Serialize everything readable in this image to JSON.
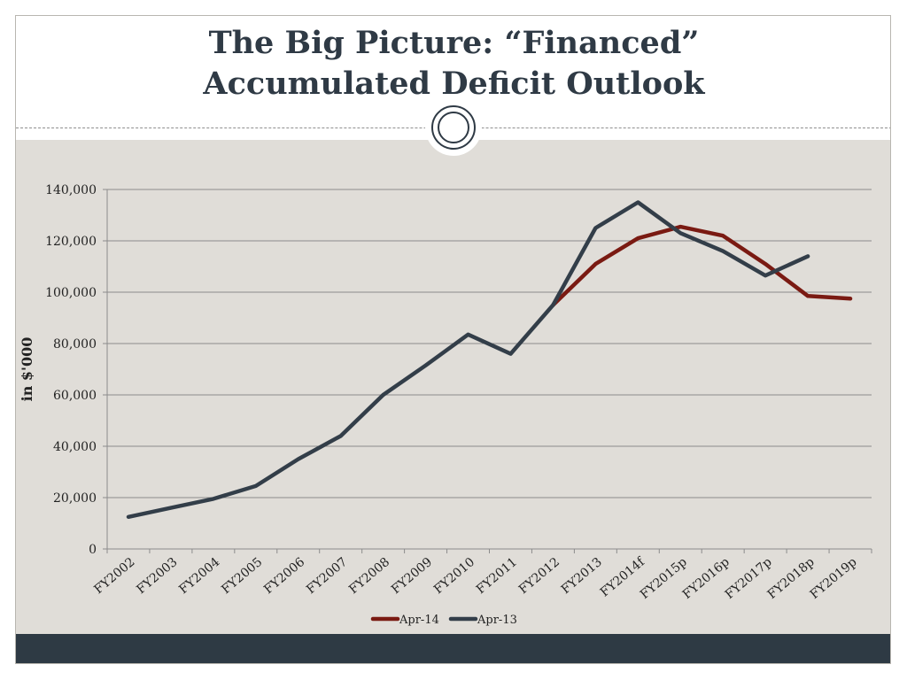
{
  "slide": {
    "title_line1": "The Big Picture:  “Financed”",
    "title_line2": "Accumulated Deficit Outlook"
  },
  "colors": {
    "title": "#2f3a45",
    "panel": "#e0ddd8",
    "footer": "#2e3a44",
    "grid": "#8c8c8c"
  },
  "chart_data": {
    "type": "line",
    "title": "",
    "xlabel": "",
    "ylabel": "in $'000",
    "ylim": [
      0,
      140000
    ],
    "yticks": [
      0,
      20000,
      40000,
      60000,
      80000,
      100000,
      120000,
      140000
    ],
    "ytick_labels": [
      "0",
      "20,000",
      "40,000",
      "60,000",
      "80,000",
      "100,000",
      "120,000",
      "140,000"
    ],
    "grid": true,
    "legend_position": "bottom",
    "categories": [
      "FY2002",
      "FY2003",
      "FY2004",
      "FY2005",
      "FY2006",
      "FY2007",
      "FY2008",
      "FY2009",
      "FY2010",
      "FY2011",
      "FY2012",
      "FY2013",
      "FY2014f",
      "FY2015p",
      "FY2016p",
      "FY2017p",
      "FY2018p",
      "FY2019p"
    ],
    "series": [
      {
        "name": "Apr-14",
        "color": "#7a1a12",
        "values": [
          null,
          null,
          null,
          null,
          null,
          null,
          null,
          null,
          null,
          null,
          95000,
          111000,
          121000,
          125500,
          122000,
          111000,
          98500,
          97500
        ]
      },
      {
        "name": "Apr-13",
        "color": "#333e49",
        "values": [
          12500,
          16000,
          19500,
          24500,
          35000,
          44000,
          60000,
          71500,
          83500,
          76000,
          95000,
          125000,
          135000,
          123000,
          116000,
          106500,
          114000,
          null
        ]
      }
    ]
  }
}
